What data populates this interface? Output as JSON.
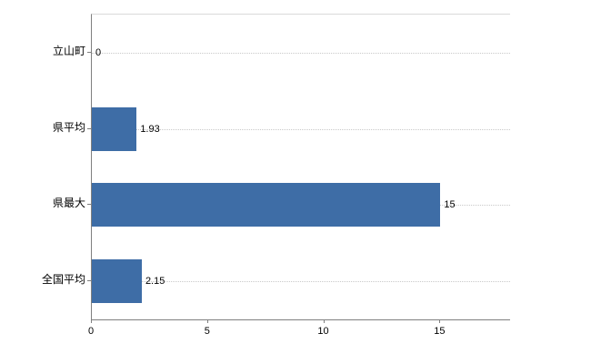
{
  "chart_data": {
    "type": "bar",
    "orientation": "horizontal",
    "title": "",
    "xlabel": "",
    "ylabel": "",
    "categories": [
      "立山町",
      "県平均",
      "県最大",
      "全国平均"
    ],
    "values": [
      0,
      1.93,
      15,
      2.15
    ],
    "value_labels": [
      "0",
      "1.93",
      "15",
      "2.15"
    ],
    "xticks": [
      "0",
      "5",
      "10",
      "15"
    ],
    "xtick_values": [
      0,
      5,
      10,
      15
    ],
    "xlim": [
      0,
      18
    ],
    "grid": "dotted-horizontal",
    "legend": "none",
    "bar_color": "#3e6da6",
    "axis_color": "#7f7f7f",
    "gridline_color": "#c9c9c9",
    "background_color": "#ffffff"
  }
}
